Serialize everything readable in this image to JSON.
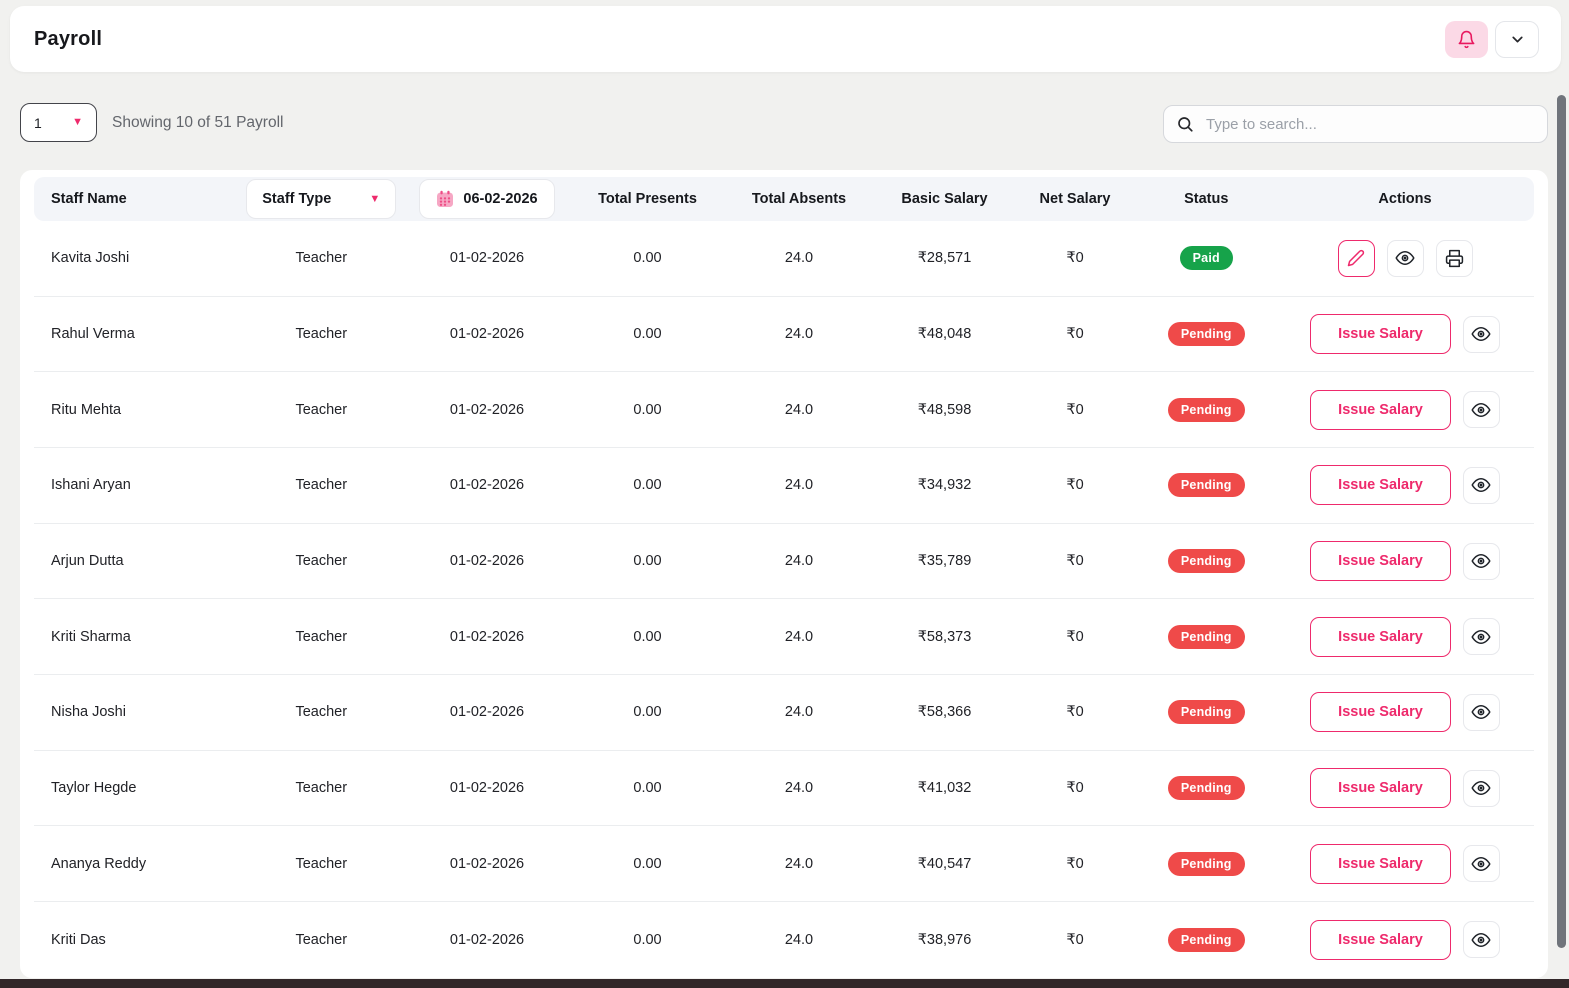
{
  "header": {
    "title": "Payroll"
  },
  "controls": {
    "page_select_value": "1",
    "showing_text": "Showing 10 of 51 Payroll",
    "search_placeholder": "Type to search..."
  },
  "labels": {
    "issue_salary": "Issue Salary"
  },
  "table": {
    "header": {
      "staff_name": "Staff Name",
      "staff_type_filter": "Staff Type",
      "date_filter": "06-02-2026",
      "total_presents": "Total Presents",
      "total_absents": "Total Absents",
      "basic_salary": "Basic Salary",
      "net_salary": "Net Salary",
      "status": "Status",
      "actions": "Actions"
    },
    "rows": [
      {
        "name": "Kavita Joshi",
        "type": "Teacher",
        "date": "01-02-2026",
        "presents": "0.00",
        "absents": "24.0",
        "basic": "₹28,571",
        "net": "₹0",
        "status": "Paid"
      },
      {
        "name": "Rahul Verma",
        "type": "Teacher",
        "date": "01-02-2026",
        "presents": "0.00",
        "absents": "24.0",
        "basic": "₹48,048",
        "net": "₹0",
        "status": "Pending"
      },
      {
        "name": "Ritu Mehta",
        "type": "Teacher",
        "date": "01-02-2026",
        "presents": "0.00",
        "absents": "24.0",
        "basic": "₹48,598",
        "net": "₹0",
        "status": "Pending"
      },
      {
        "name": "Ishani Aryan",
        "type": "Teacher",
        "date": "01-02-2026",
        "presents": "0.00",
        "absents": "24.0",
        "basic": "₹34,932",
        "net": "₹0",
        "status": "Pending"
      },
      {
        "name": "Arjun Dutta",
        "type": "Teacher",
        "date": "01-02-2026",
        "presents": "0.00",
        "absents": "24.0",
        "basic": "₹35,789",
        "net": "₹0",
        "status": "Pending"
      },
      {
        "name": "Kriti Sharma",
        "type": "Teacher",
        "date": "01-02-2026",
        "presents": "0.00",
        "absents": "24.0",
        "basic": "₹58,373",
        "net": "₹0",
        "status": "Pending"
      },
      {
        "name": "Nisha Joshi",
        "type": "Teacher",
        "date": "01-02-2026",
        "presents": "0.00",
        "absents": "24.0",
        "basic": "₹58,366",
        "net": "₹0",
        "status": "Pending"
      },
      {
        "name": "Taylor Hegde",
        "type": "Teacher",
        "date": "01-02-2026",
        "presents": "0.00",
        "absents": "24.0",
        "basic": "₹41,032",
        "net": "₹0",
        "status": "Pending"
      },
      {
        "name": "Ananya Reddy",
        "type": "Teacher",
        "date": "01-02-2026",
        "presents": "0.00",
        "absents": "24.0",
        "basic": "₹40,547",
        "net": "₹0",
        "status": "Pending"
      },
      {
        "name": "Kriti Das",
        "type": "Teacher",
        "date": "01-02-2026",
        "presents": "0.00",
        "absents": "24.0",
        "basic": "₹38,976",
        "net": "₹0",
        "status": "Pending"
      }
    ]
  },
  "colors": {
    "accent_pink": "#ee2a6c",
    "accent_soft_pink": "#fbd9e6",
    "paid_green": "#16a34a",
    "pending_red": "#ef4a49"
  }
}
